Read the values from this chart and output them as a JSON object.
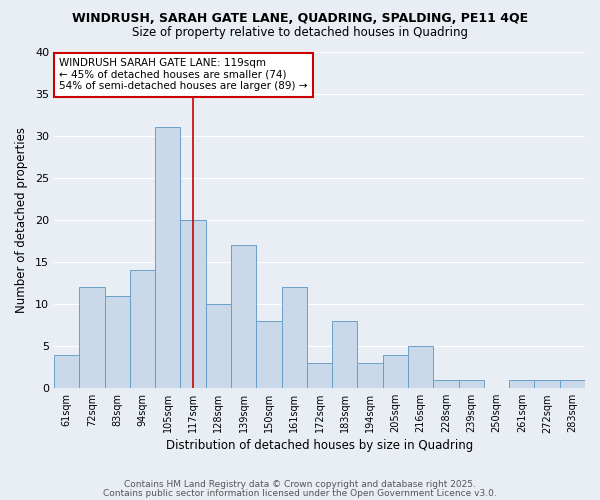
{
  "title": "WINDRUSH, SARAH GATE LANE, QUADRING, SPALDING, PE11 4QE",
  "subtitle": "Size of property relative to detached houses in Quadring",
  "xlabel": "Distribution of detached houses by size in Quadring",
  "ylabel": "Number of detached properties",
  "bar_labels": [
    "61sqm",
    "72sqm",
    "83sqm",
    "94sqm",
    "105sqm",
    "117sqm",
    "128sqm",
    "139sqm",
    "150sqm",
    "161sqm",
    "172sqm",
    "183sqm",
    "194sqm",
    "205sqm",
    "216sqm",
    "228sqm",
    "239sqm",
    "250sqm",
    "261sqm",
    "272sqm",
    "283sqm"
  ],
  "bar_values": [
    4,
    12,
    11,
    14,
    31,
    20,
    10,
    17,
    8,
    12,
    3,
    8,
    3,
    4,
    5,
    1,
    1,
    0,
    1,
    1,
    1
  ],
  "bar_color": "#c9d9ea",
  "bar_edge_color": "#6b9fc7",
  "vline_x_index": 5,
  "vline_color": "#cc0000",
  "annotation_title": "WINDRUSH SARAH GATE LANE: 119sqm",
  "annotation_line1": "← 45% of detached houses are smaller (74)",
  "annotation_line2": "54% of semi-detached houses are larger (89) →",
  "annotation_box_edge": "#cc0000",
  "ylim": [
    0,
    40
  ],
  "yticks": [
    0,
    5,
    10,
    15,
    20,
    25,
    30,
    35,
    40
  ],
  "footer1": "Contains HM Land Registry data © Crown copyright and database right 2025.",
  "footer2": "Contains public sector information licensed under the Open Government Licence v3.0.",
  "bg_color": "#e8eef4",
  "plot_bg_color": "#e8eef4",
  "grid_color": "#ffffff"
}
